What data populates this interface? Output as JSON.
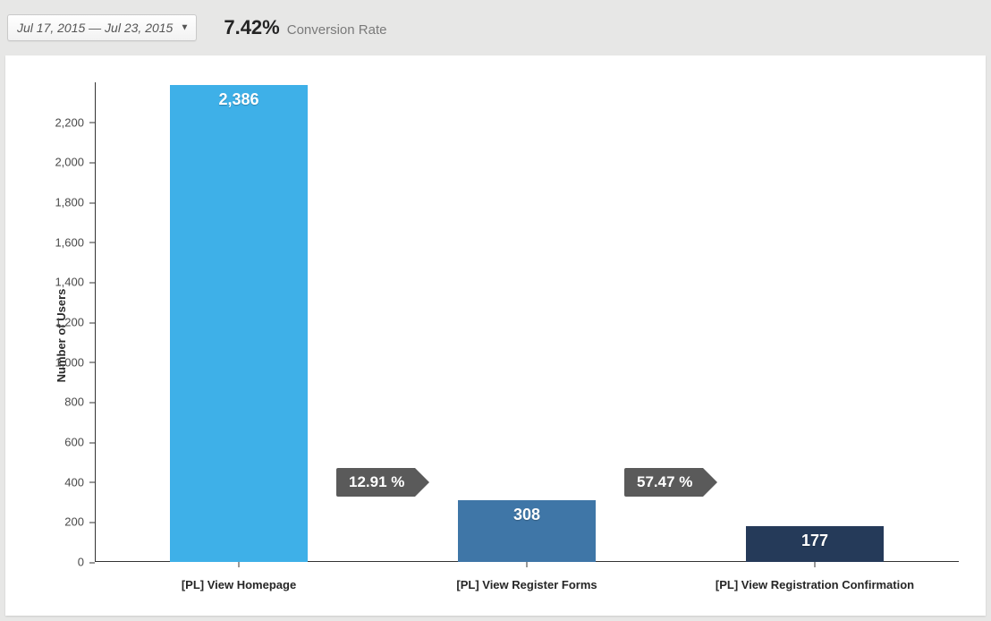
{
  "header": {
    "date_range": "Jul 17, 2015 — Jul 23, 2015",
    "conversion_value": "7.42%",
    "conversion_label": "Conversion Rate"
  },
  "chart": {
    "type": "bar",
    "y_axis_label": "Number of Users",
    "y_ticks": [
      0,
      200,
      400,
      600,
      800,
      1000,
      1200,
      1400,
      1600,
      1800,
      2000,
      2200
    ],
    "y_tick_labels": [
      "0",
      "200",
      "400",
      "600",
      "800",
      "1,000",
      "1,200",
      "1,400",
      "1,600",
      "1,800",
      "2,000",
      "2,200"
    ],
    "ylim": [
      0,
      2400
    ],
    "tick_fontsize": 13,
    "axis_label_fontsize": 13,
    "bar_width_ratio": 0.48,
    "plot_background": "#ffffff",
    "axis_color": "#333333",
    "value_label_color": "#ffffff",
    "value_label_fontsize": 18,
    "categories": [
      {
        "label": "[PL] View Homepage",
        "value": 2386,
        "value_display": "2,386",
        "color": "#3eb0e8"
      },
      {
        "label": "[PL] View Register Forms",
        "value": 308,
        "value_display": "308",
        "color": "#3f76a7"
      },
      {
        "label": "[PL] View Registration Confirmation",
        "value": 177,
        "value_display": "177",
        "color": "#253a59"
      }
    ],
    "step_labels": [
      {
        "text": "12.91 %",
        "after_index": 0,
        "bg": "#5a5a5a",
        "fontsize": 17
      },
      {
        "text": "57.47 %",
        "after_index": 1,
        "bg": "#5a5a5a",
        "fontsize": 17
      }
    ]
  },
  "page_background": "#e7e7e6"
}
